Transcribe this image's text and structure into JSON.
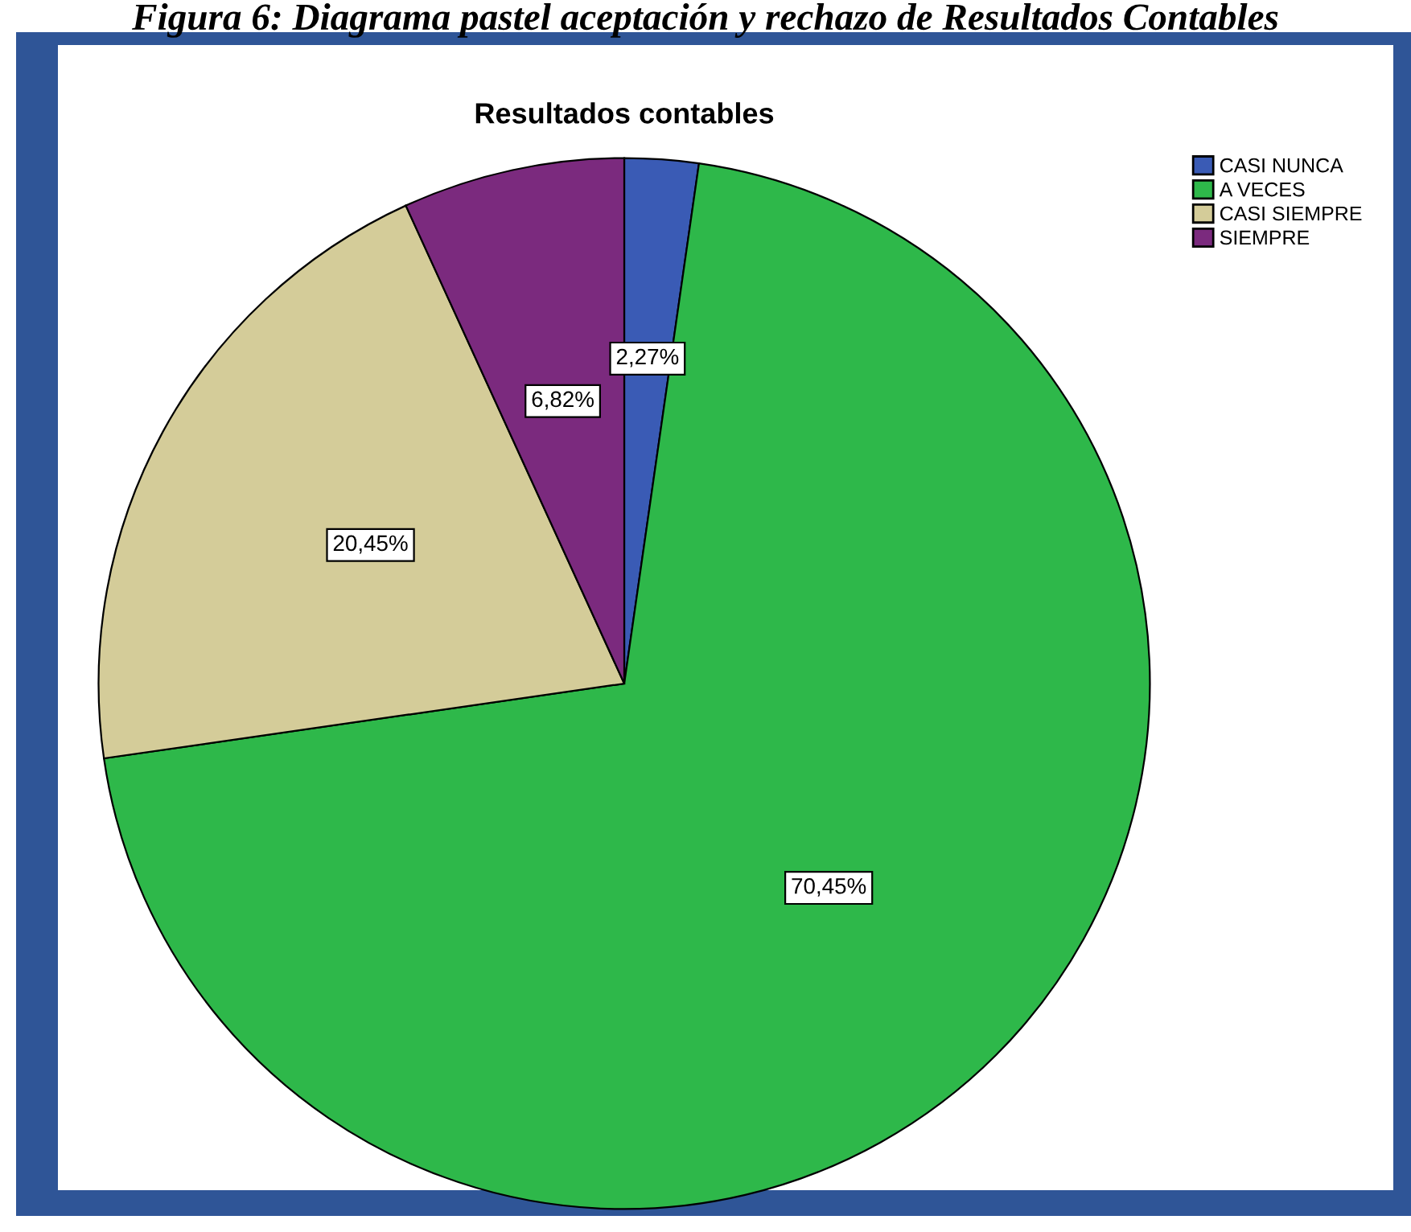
{
  "chart_data": {
    "type": "pie",
    "title": "Resultados contables",
    "annotations": [
      "Figura 6: Diagrama pastel aceptación y rechazo de Resultados Contables"
    ],
    "categories": [
      "CASI NUNCA",
      "A VECES",
      "CASI SIEMPRE",
      "SIEMPRE"
    ],
    "values": [
      2.27,
      70.45,
      20.45,
      6.82
    ],
    "colors": [
      "#3a5bb5",
      "#2eb84a",
      "#d4cc99",
      "#7b2a7e"
    ],
    "value_labels": [
      "2,27%",
      "70,45%",
      "20,45%",
      "6,82%"
    ],
    "legend": "top right"
  }
}
